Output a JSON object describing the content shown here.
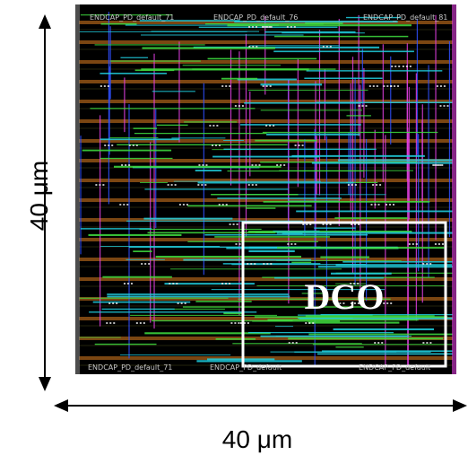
{
  "dimensions": {
    "vertical_label": "40 μm",
    "horizontal_label": "40 μm"
  },
  "layout": {
    "block_label": "DCO",
    "cell_labels": [
      "ENDCAP_PD_default_71",
      "ENDCAP_PD_default_76",
      "ENDCAP_PD_default_81",
      "ENDCAP_PD_default_71",
      "ENDCAP_PD_default",
      "ENDCAP_PD_default"
    ],
    "colors": {
      "background": "#000000",
      "metal_magenta": "#e040e0",
      "metal_cyan": "#20d0e0",
      "metal_green": "#40e040",
      "metal_blue": "#3050ff",
      "metal_orange": "#e08020",
      "metal_yellow": "#d8d040",
      "highlight_box": "#ffffff"
    }
  }
}
